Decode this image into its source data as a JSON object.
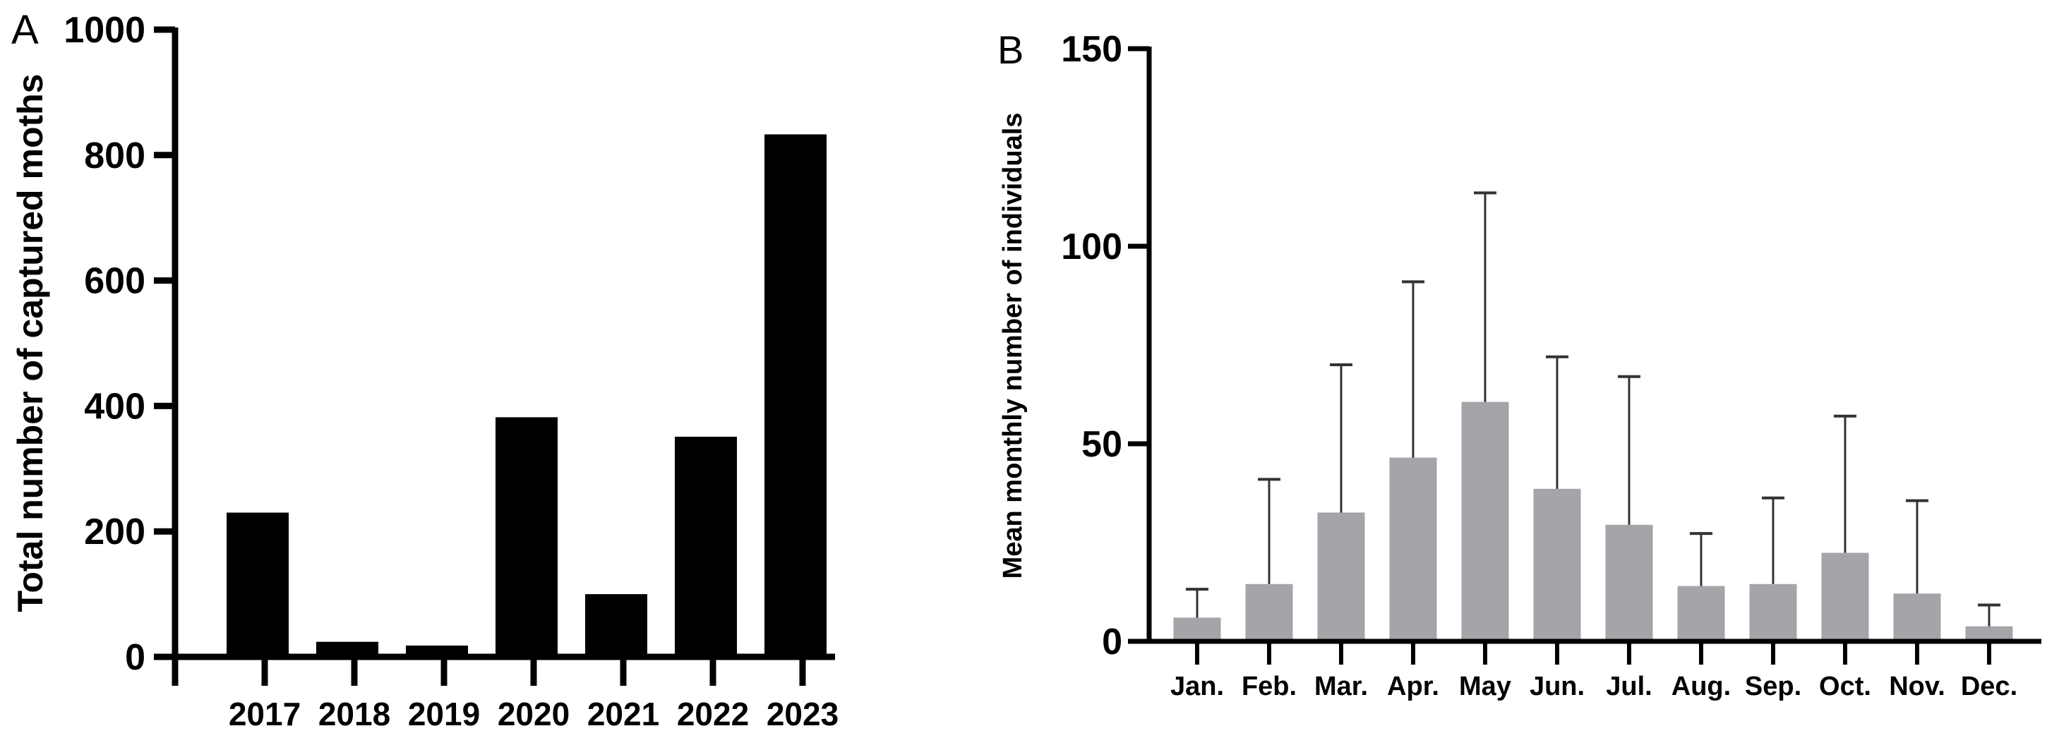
{
  "chart_data": [
    {
      "panel_label": "A",
      "type": "bar",
      "ylabel": "Total number of captured  moths",
      "xlabel": "",
      "categories": [
        "2017",
        "2018",
        "2019",
        "2020",
        "2021",
        "2022",
        "2023"
      ],
      "values": [
        230,
        24,
        18,
        382,
        100,
        351,
        833
      ],
      "ylim": [
        0,
        1000
      ],
      "yticks": [
        0,
        200,
        400,
        600,
        800,
        1000
      ],
      "bar_color": "#000000",
      "grid": false
    },
    {
      "panel_label": "B",
      "type": "bar",
      "ylabel": "Mean monthly number of individuals",
      "xlabel": "",
      "categories": [
        "Jan.",
        "Feb.",
        "Mar.",
        "Apr.",
        "May",
        "Jun.",
        "Jul.",
        "Aug.",
        "Sep.",
        "Oct.",
        "Nov.",
        "Dec."
      ],
      "values": [
        6,
        14.5,
        32.6,
        46.5,
        60.6,
        38.6,
        29.5,
        14,
        14.5,
        22.4,
        12.1,
        3.8
      ],
      "error_upper": [
        13.2,
        41,
        70,
        91,
        113.5,
        72,
        67,
        27.3,
        36.3,
        57,
        35.6,
        9.2
      ],
      "ylim": [
        0,
        150
      ],
      "yticks": [
        0,
        50,
        100,
        150
      ],
      "bar_color": "#a5a4a8",
      "error_bar_color": "#333333",
      "grid": false
    }
  ]
}
